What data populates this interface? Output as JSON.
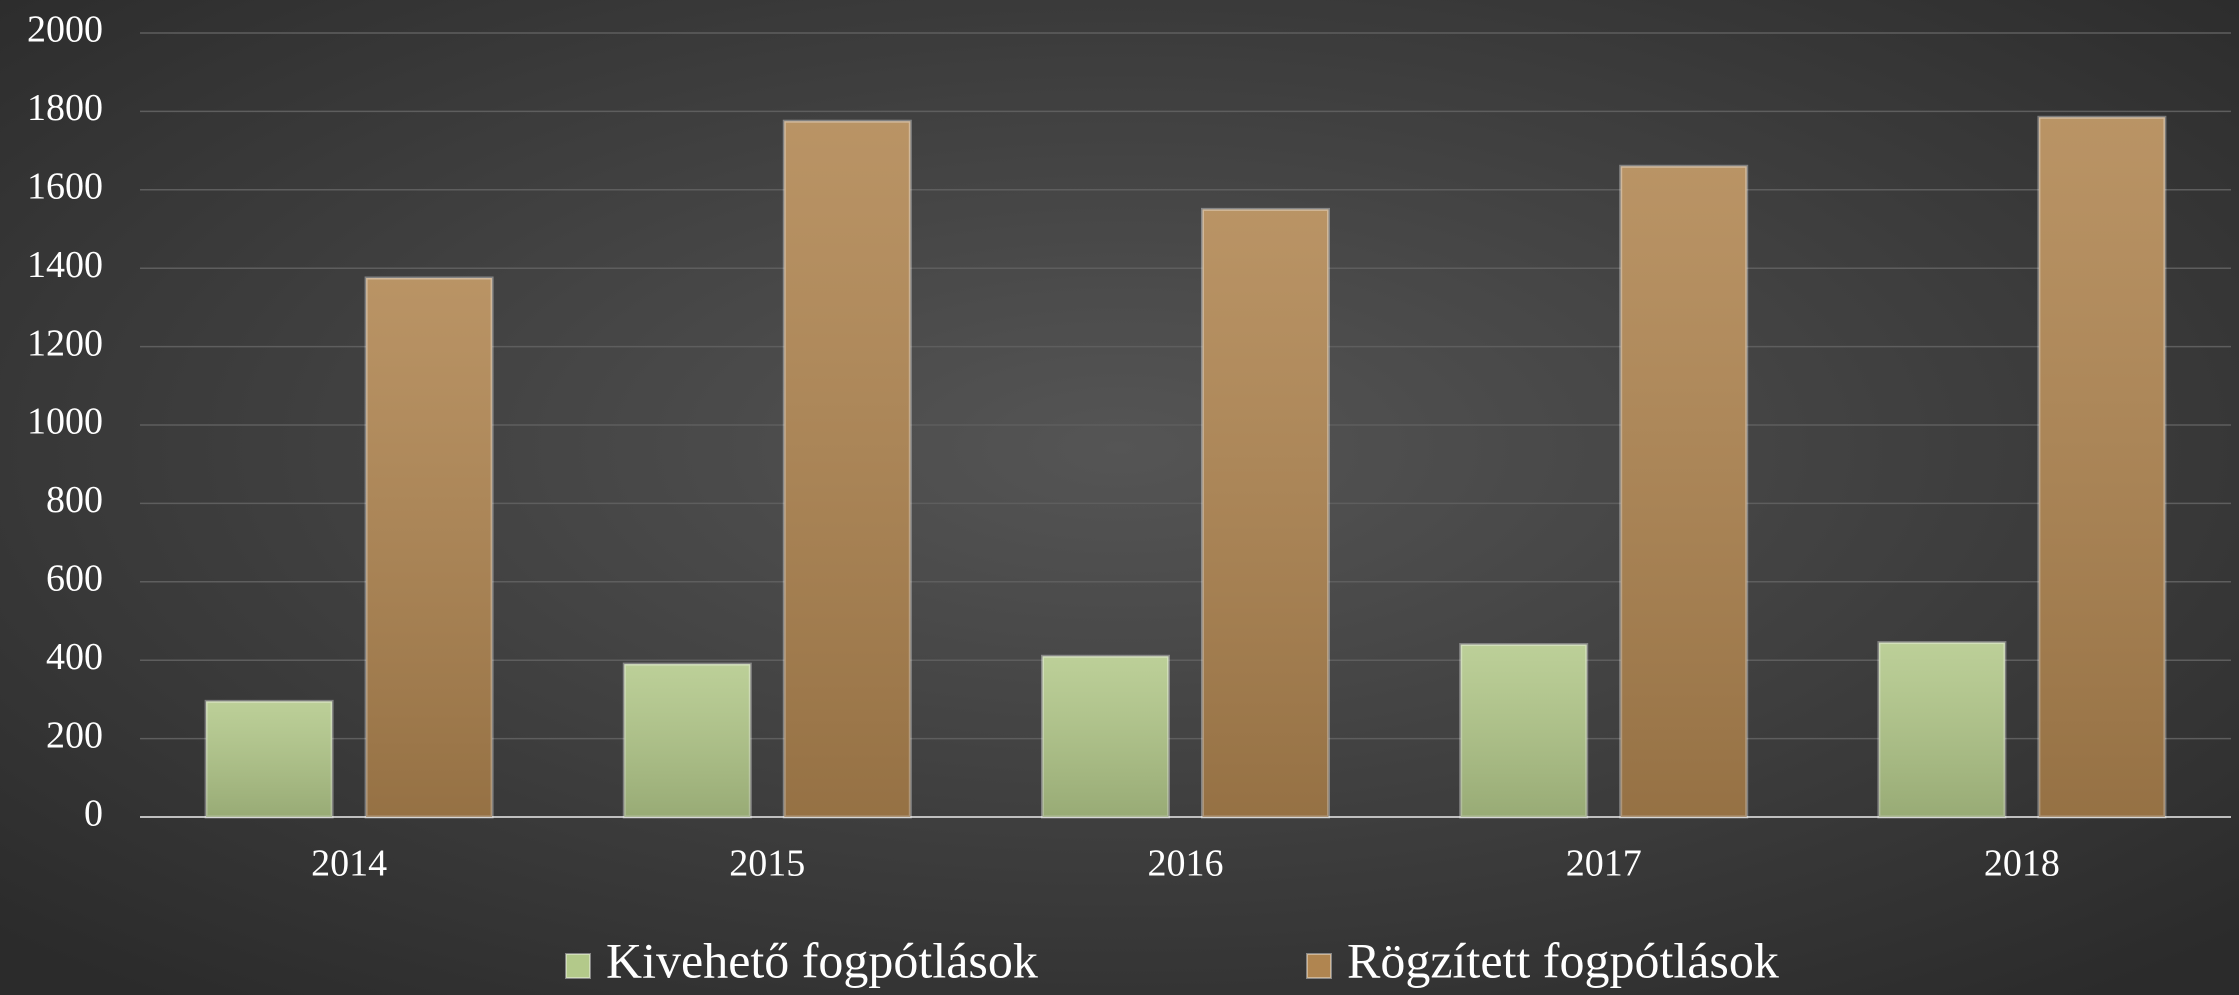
{
  "chart_data": {
    "type": "bar",
    "categories": [
      "2014",
      "2015",
      "2016",
      "2017",
      "2018"
    ],
    "series": [
      {
        "name": "Kivehető fogpótlások",
        "color": "#b3c98a",
        "values": [
          295,
          390,
          410,
          440,
          445
        ]
      },
      {
        "name": "Rögzített fogpótlások",
        "color": "#b08550",
        "values": [
          1375,
          1775,
          1550,
          1660,
          1785
        ]
      }
    ],
    "ylim": [
      0,
      2000
    ],
    "yticks": [
      0,
      200,
      400,
      600,
      800,
      1000,
      1200,
      1400,
      1600,
      1800,
      2000
    ],
    "grid": true,
    "legend": "bottom"
  }
}
